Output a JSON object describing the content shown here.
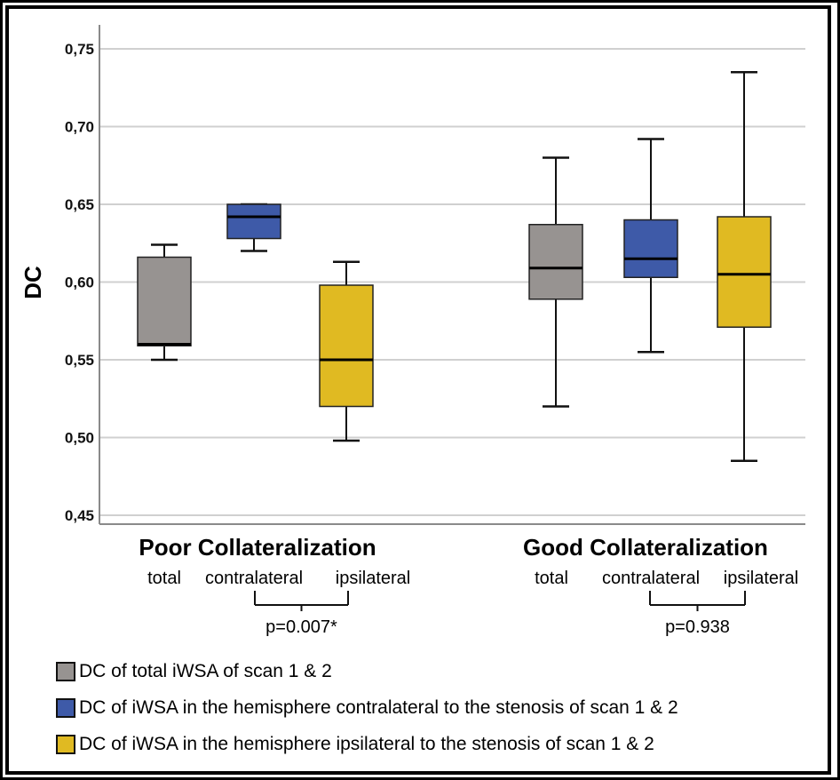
{
  "chart_data": {
    "type": "boxplot",
    "title": "",
    "xlabel": "",
    "ylabel": "DC",
    "ylim": [
      0.45,
      0.75
    ],
    "yticks": [
      "0,45",
      "0,50",
      "0,55",
      "0,60",
      "0,65",
      "0,70",
      "0,75"
    ],
    "ytick_values": [
      0.45,
      0.5,
      0.55,
      0.6,
      0.65,
      0.7,
      0.75
    ],
    "grid": true,
    "groups": [
      {
        "name": "Poor Collateralization",
        "sublabels": [
          "total",
          "contralateral",
          "ipsilateral"
        ],
        "comparison": {
          "between": [
            "contralateral",
            "ipsilateral"
          ],
          "label": "p=0.007*"
        },
        "boxes": [
          {
            "series": "total",
            "whisker_low": 0.55,
            "q1": 0.559,
            "median": 0.56,
            "q3": 0.616,
            "whisker_high": 0.624
          },
          {
            "series": "contralateral",
            "whisker_low": 0.62,
            "q1": 0.628,
            "median": 0.642,
            "q3": 0.65,
            "whisker_high": 0.65
          },
          {
            "series": "ipsilateral",
            "whisker_low": 0.498,
            "q1": 0.52,
            "median": 0.55,
            "q3": 0.598,
            "whisker_high": 0.613
          }
        ]
      },
      {
        "name": "Good Collateralization",
        "sublabels": [
          "total",
          "contralateral",
          "ipsilateral"
        ],
        "comparison": {
          "between": [
            "contralateral",
            "ipsilateral"
          ],
          "label": "p=0.938"
        },
        "boxes": [
          {
            "series": "total",
            "whisker_low": 0.52,
            "q1": 0.589,
            "median": 0.609,
            "q3": 0.637,
            "whisker_high": 0.68
          },
          {
            "series": "contralateral",
            "whisker_low": 0.555,
            "q1": 0.603,
            "median": 0.615,
            "q3": 0.64,
            "whisker_high": 0.692
          },
          {
            "series": "ipsilateral",
            "whisker_low": 0.485,
            "q1": 0.571,
            "median": 0.605,
            "q3": 0.642,
            "whisker_high": 0.735
          }
        ]
      }
    ],
    "series": [
      {
        "name": "total",
        "color": "#979391",
        "legend": "DC of total iWSA of scan 1 & 2"
      },
      {
        "name": "contralateral",
        "color": "#3e5aa8",
        "legend": "DC of iWSA in the hemisphere contralateral to the stenosis of scan 1 & 2"
      },
      {
        "name": "ipsilateral",
        "color": "#e0ba22",
        "legend": "DC of iWSA in the hemisphere ipsilateral to the stenosis of scan 1 & 2"
      }
    ],
    "legend_position": "bottom-left"
  }
}
